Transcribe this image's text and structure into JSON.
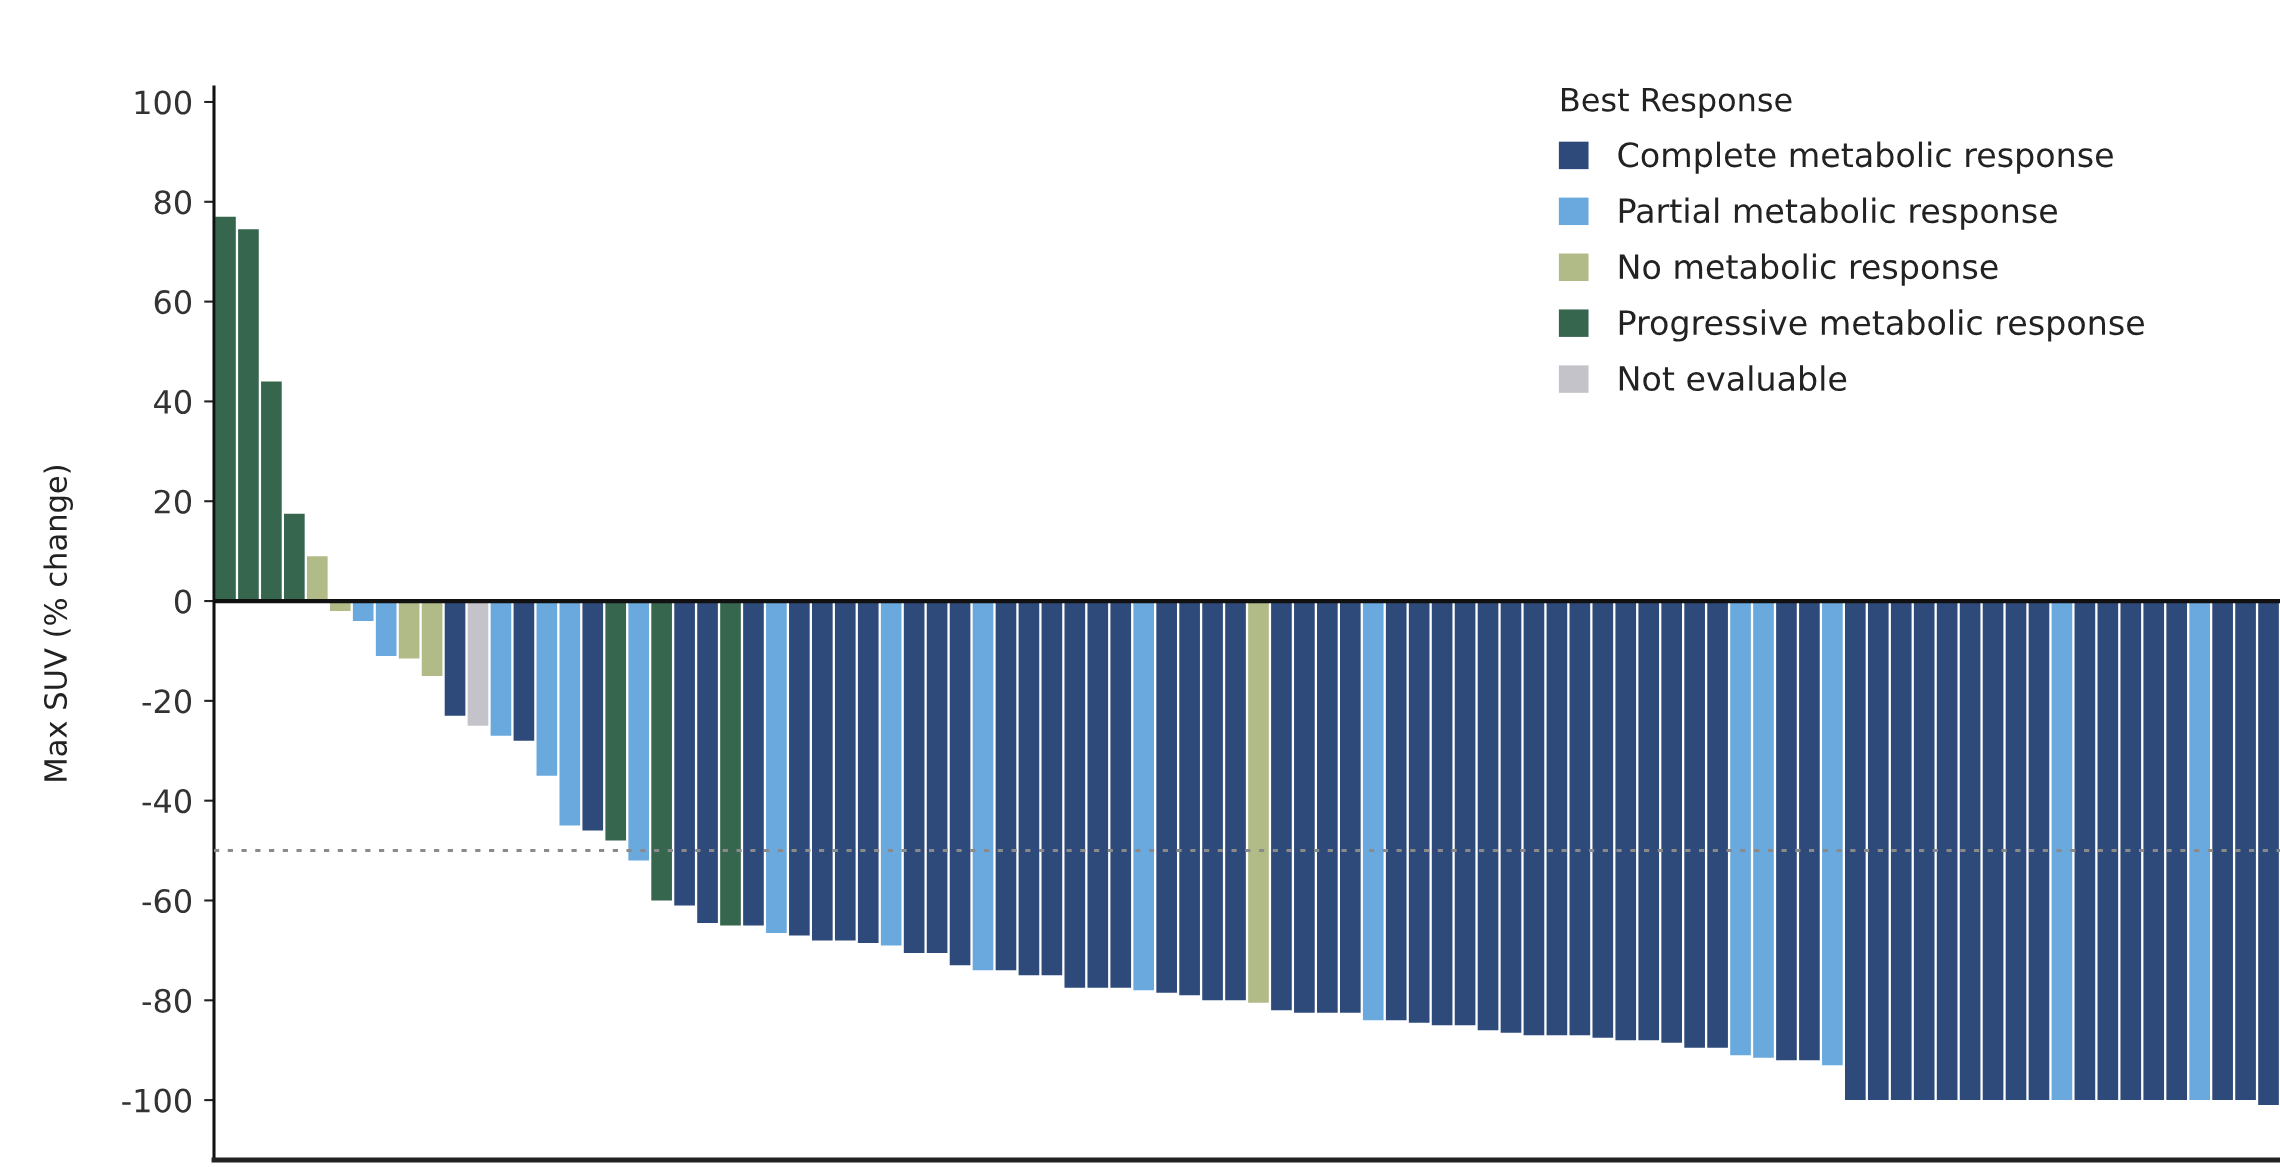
{
  "chart_data": {
    "type": "bar",
    "stacked": true,
    "ylabel": "Max SUV (% change)",
    "legend_title": "Best Response",
    "legend": "top right",
    "tick_labels": "y",
    "categories": [
      null,
      null,
      null,
      null,
      null,
      null,
      null,
      null,
      null,
      null,
      null,
      null,
      null,
      null,
      null,
      null,
      null,
      null,
      null,
      null,
      null,
      null,
      null,
      null,
      null,
      null,
      null,
      null,
      null,
      null,
      null,
      null,
      null,
      null,
      null,
      null,
      null,
      null,
      null,
      null,
      null,
      null,
      null,
      null,
      null,
      null,
      null,
      null,
      null,
      null,
      null,
      null,
      null,
      null,
      null,
      null,
      null,
      null,
      null,
      null,
      null,
      null,
      null,
      null,
      null,
      null,
      null,
      null,
      null,
      null,
      null,
      null,
      null,
      null,
      null,
      null,
      null,
      null,
      null,
      null,
      null,
      null,
      null,
      null,
      null,
      null,
      null,
      null,
      null,
      null
    ],
    "ylim": [
      -112,
      103
    ],
    "yticks": [
      100,
      80,
      60,
      40,
      20,
      0,
      -20,
      -40,
      -60,
      -80,
      -100
    ],
    "ref_lines": [
      {
        "axis": "y",
        "value": 0,
        "color": "#111111",
        "line_style": "solid"
      },
      {
        "axis": "y",
        "value": -50,
        "color": "#8a8a8a",
        "line_style": "dotted"
      }
    ],
    "series": [
      {
        "name": "Complete metabolic response",
        "color": "#2d4a7b",
        "values": [
          null,
          null,
          null,
          null,
          null,
          null,
          null,
          null,
          null,
          null,
          -23,
          null,
          null,
          -28,
          null,
          null,
          -46,
          null,
          null,
          null,
          -61,
          -64.5,
          null,
          -65,
          null,
          -67,
          -68,
          -68,
          -68.5,
          null,
          -70.5,
          -70.5,
          -73,
          null,
          -74,
          -75,
          -75,
          -77.5,
          -77.5,
          -77.5,
          null,
          -78.5,
          -79,
          -80,
          -80,
          null,
          -82,
          -82.5,
          -82.5,
          -82.5,
          null,
          -84,
          -84.5,
          -85,
          -85,
          -86,
          -86.5,
          -87,
          -87,
          -87,
          -87.5,
          -88,
          -88,
          -88.5,
          -89.5,
          -89.5,
          null,
          null,
          -92,
          -92,
          null,
          -100,
          -100,
          -100,
          -100,
          -100,
          -100,
          -100,
          -100,
          -100,
          null,
          -100,
          -100,
          -100,
          -100,
          -100,
          null,
          -100,
          -100,
          -101
        ]
      },
      {
        "name": "Partial metabolic response",
        "color": "#6aa9de",
        "values": [
          null,
          null,
          null,
          null,
          null,
          null,
          -4,
          -11,
          null,
          null,
          null,
          null,
          -27,
          null,
          -35,
          -45,
          null,
          null,
          -52,
          null,
          null,
          null,
          null,
          null,
          -66.5,
          null,
          null,
          null,
          null,
          -69,
          null,
          null,
          null,
          -74,
          null,
          null,
          null,
          null,
          null,
          null,
          -78,
          null,
          null,
          null,
          null,
          null,
          null,
          null,
          null,
          null,
          -84,
          null,
          null,
          null,
          null,
          null,
          null,
          null,
          null,
          null,
          null,
          null,
          null,
          null,
          null,
          null,
          -91,
          -91.5,
          null,
          null,
          -93,
          null,
          null,
          null,
          null,
          null,
          null,
          null,
          null,
          null,
          -100,
          null,
          null,
          null,
          null,
          null,
          -100,
          null,
          null,
          null
        ]
      },
      {
        "name": "No metabolic response",
        "color": "#b1bb87",
        "values": [
          null,
          null,
          null,
          null,
          9,
          -2,
          null,
          null,
          -11.5,
          -15,
          null,
          null,
          null,
          null,
          null,
          null,
          null,
          null,
          null,
          null,
          null,
          null,
          null,
          null,
          null,
          null,
          null,
          null,
          null,
          null,
          null,
          null,
          null,
          null,
          null,
          null,
          null,
          null,
          null,
          null,
          null,
          null,
          null,
          null,
          null,
          -80.5,
          null,
          null,
          null,
          null,
          null,
          null,
          null,
          null,
          null,
          null,
          null,
          null,
          null,
          null,
          null,
          null,
          null,
          null,
          null,
          null,
          null,
          null,
          null,
          null,
          null,
          null,
          null,
          null,
          null,
          null,
          null,
          null,
          null,
          null,
          null,
          null,
          null,
          null,
          null,
          null,
          null,
          null,
          null,
          null
        ]
      },
      {
        "name": "Progressive metabolic response",
        "color": "#37664f",
        "values": [
          77,
          74.5,
          44,
          17.5,
          null,
          null,
          null,
          null,
          null,
          null,
          null,
          null,
          null,
          null,
          null,
          null,
          null,
          -48,
          null,
          -60,
          null,
          null,
          -65,
          null,
          null,
          null,
          null,
          null,
          null,
          null,
          null,
          null,
          null,
          null,
          null,
          null,
          null,
          null,
          null,
          null,
          null,
          null,
          null,
          null,
          null,
          null,
          null,
          null,
          null,
          null,
          null,
          null,
          null,
          null,
          null,
          null,
          null,
          null,
          null,
          null,
          null,
          null,
          null,
          null,
          null,
          null,
          null,
          null,
          null,
          null,
          null,
          null,
          null,
          null,
          null,
          null,
          null,
          null,
          null,
          null,
          null,
          null,
          null,
          null,
          null,
          null,
          null,
          null,
          null,
          null
        ]
      },
      {
        "name": "Not evaluable",
        "color": "#c4c3c9",
        "values": [
          null,
          null,
          null,
          null,
          null,
          null,
          null,
          null,
          null,
          null,
          null,
          -25,
          null,
          null,
          null,
          null,
          null,
          null,
          null,
          null,
          null,
          null,
          null,
          null,
          null,
          null,
          null,
          null,
          null,
          null,
          null,
          null,
          null,
          null,
          null,
          null,
          null,
          null,
          null,
          null,
          null,
          null,
          null,
          null,
          null,
          null,
          null,
          null,
          null,
          null,
          null,
          null,
          null,
          null,
          null,
          null,
          null,
          null,
          null,
          null,
          null,
          null,
          null,
          null,
          null,
          null,
          null,
          null,
          null,
          null,
          null,
          null,
          null,
          null,
          null,
          null,
          null,
          null,
          null,
          null,
          null,
          null,
          null,
          null,
          null,
          null,
          null,
          null,
          null,
          null
        ]
      }
    ]
  }
}
